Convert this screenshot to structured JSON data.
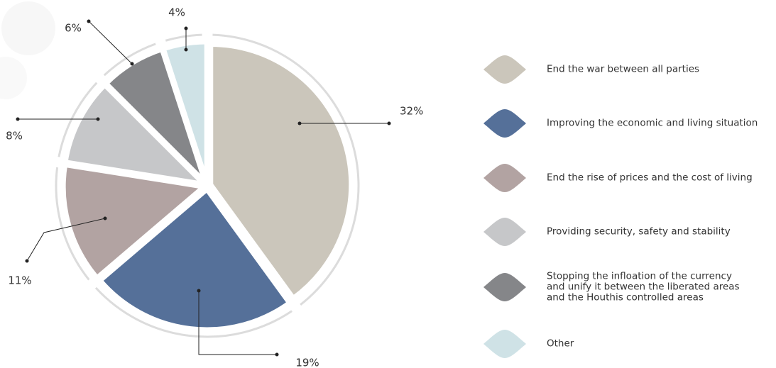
{
  "chart_data": {
    "type": "pie",
    "categories": [
      "End the war between all parties",
      "Improving the economic and living situation",
      "End the rise of prices and the cost of living",
      "Providing security, safety and stability",
      "Stopping the infloation of the currency\nand unify it between the liberated areas\nand the Houthis controlled areas",
      "Other"
    ],
    "values": [
      32,
      19,
      11,
      8,
      6,
      4
    ],
    "value_labels": [
      "32%",
      "19%",
      "11%",
      "8%",
      "6%",
      "4%"
    ],
    "colors": [
      "#cbc6bb",
      "#557099",
      "#b2a3a2",
      "#c6c7c9",
      "#858689",
      "#cfe2e6"
    ]
  }
}
